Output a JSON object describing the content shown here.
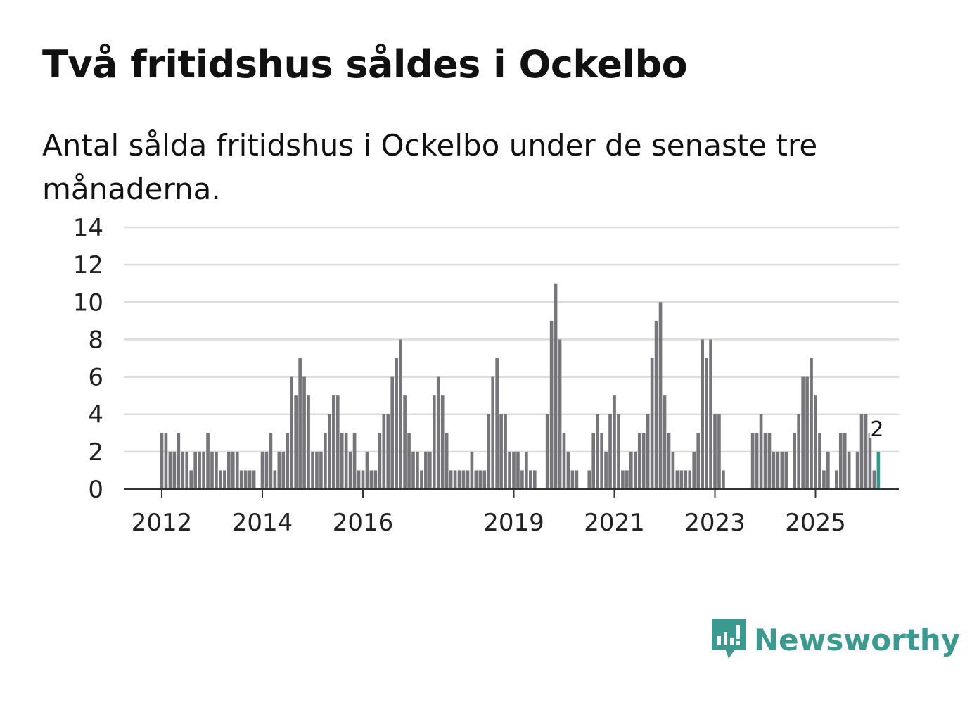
{
  "title": "Två fritidshus såldes i Ockelbo",
  "subtitle": "Antal sålda fritidshus i Ockelbo under de senaste tre månaderna.",
  "brand": {
    "name": "Newsworthy",
    "icon": "newsworthy-logo-icon",
    "color": "#3a9a8f"
  },
  "chart_data": {
    "type": "bar",
    "title": "Två fritidshus såldes i Ockelbo",
    "subtitle": "Antal sålda fritidshus i Ockelbo under de senaste tre månaderna.",
    "ylim": [
      0,
      14
    ],
    "yticks": [
      0,
      2,
      4,
      6,
      8,
      10,
      12,
      14
    ],
    "xticks": [
      "2012",
      "2014",
      "2016",
      "2019",
      "2021",
      "2023",
      "2025"
    ],
    "grid": true,
    "start": "2012-01",
    "frequency": "monthly",
    "bar_color": "#76757a",
    "highlight_color": "#2a9d8f",
    "highlight_last": true,
    "last_value_label": "2",
    "values": [
      3,
      3,
      2,
      2,
      3,
      2,
      2,
      1,
      2,
      2,
      2,
      3,
      2,
      2,
      1,
      1,
      2,
      2,
      2,
      1,
      1,
      1,
      1,
      0,
      2,
      2,
      3,
      1,
      2,
      2,
      3,
      6,
      5,
      7,
      6,
      5,
      2,
      2,
      2,
      3,
      4,
      5,
      5,
      3,
      3,
      2,
      3,
      1,
      1,
      2,
      1,
      1,
      3,
      4,
      4,
      6,
      7,
      8,
      5,
      3,
      2,
      2,
      1,
      2,
      2,
      5,
      6,
      5,
      3,
      1,
      1,
      1,
      1,
      1,
      2,
      1,
      1,
      1,
      4,
      6,
      7,
      4,
      4,
      2,
      2,
      2,
      1,
      2,
      1,
      1,
      0,
      0,
      4,
      9,
      11,
      8,
      3,
      2,
      1,
      1,
      0,
      0,
      1,
      3,
      4,
      3,
      2,
      4,
      5,
      4,
      1,
      1,
      2,
      2,
      3,
      3,
      4,
      7,
      9,
      10,
      5,
      3,
      2,
      1,
      1,
      1,
      1,
      2,
      3,
      8,
      7,
      8,
      4,
      4,
      1,
      0,
      0,
      0,
      0,
      0,
      0,
      3,
      3,
      4,
      3,
      3,
      2,
      2,
      2,
      2,
      0,
      3,
      4,
      6,
      6,
      7,
      5,
      3,
      1,
      2,
      0,
      1,
      3,
      3,
      2,
      0,
      2,
      4,
      4,
      3,
      1,
      2
    ]
  }
}
